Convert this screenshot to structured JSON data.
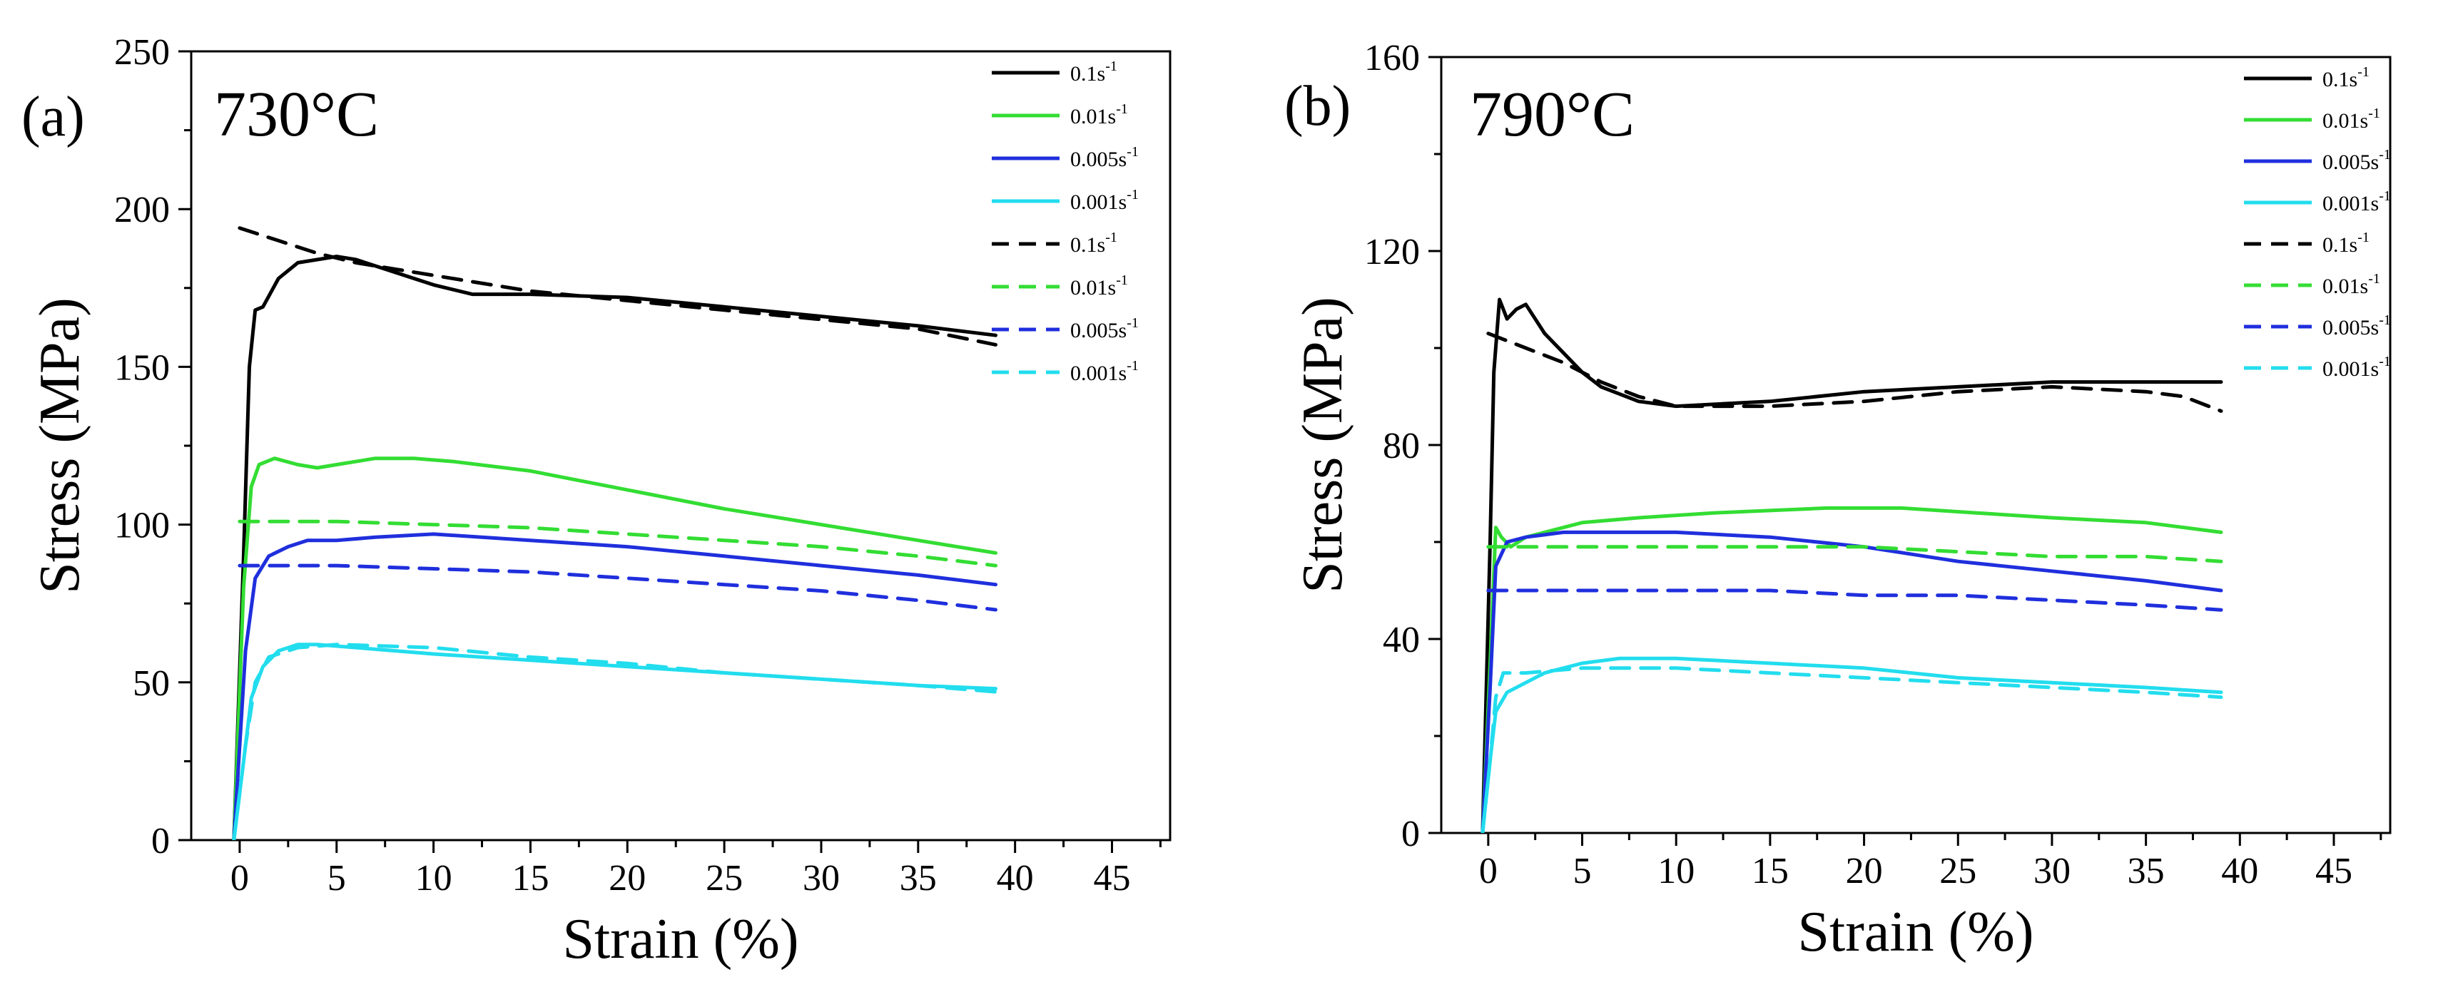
{
  "chart_data": [
    {
      "type": "line",
      "panel_label": "(a)",
      "title": "730°C",
      "xlabel": "Strain (%)",
      "ylabel": "Stress (MPa)",
      "xlim": [
        -2.5,
        48
      ],
      "ylim": [
        0,
        250
      ],
      "xticks": [
        "0",
        "5",
        "10",
        "15",
        "20",
        "25",
        "30",
        "35",
        "40",
        "45"
      ],
      "yticks": [
        "0",
        "50",
        "100",
        "150",
        "200",
        "250"
      ],
      "legend_position": "top-right",
      "series": [
        {
          "name": "0.1s",
          "unit_sup": "-1",
          "style": "solid",
          "color": "#000000",
          "points": [
            [
              -0.3,
              0
            ],
            [
              0.2,
              90
            ],
            [
              0.5,
              150
            ],
            [
              0.8,
              168
            ],
            [
              1.2,
              169
            ],
            [
              2,
              178
            ],
            [
              3,
              183
            ],
            [
              4,
              184
            ],
            [
              5,
              185
            ],
            [
              6,
              184
            ],
            [
              8,
              180
            ],
            [
              10,
              176
            ],
            [
              12,
              173
            ],
            [
              15,
              173
            ],
            [
              20,
              172
            ],
            [
              25,
              169
            ],
            [
              30,
              166
            ],
            [
              35,
              163
            ],
            [
              39,
              160
            ]
          ]
        },
        {
          "name": "0.01s",
          "unit_sup": "-1",
          "style": "solid",
          "color": "#33dd33",
          "points": [
            [
              -0.3,
              0
            ],
            [
              0.2,
              80
            ],
            [
              0.6,
              112
            ],
            [
              1,
              119
            ],
            [
              1.8,
              121
            ],
            [
              3,
              119
            ],
            [
              4,
              118
            ],
            [
              5,
              119
            ],
            [
              7,
              121
            ],
            [
              9,
              121
            ],
            [
              11,
              120
            ],
            [
              15,
              117
            ],
            [
              20,
              111
            ],
            [
              25,
              105
            ],
            [
              30,
              100
            ],
            [
              35,
              95
            ],
            [
              39,
              91
            ]
          ]
        },
        {
          "name": "0.005s",
          "unit_sup": "-1",
          "style": "solid",
          "color": "#1f2fdd",
          "points": [
            [
              -0.3,
              0
            ],
            [
              0.3,
              60
            ],
            [
              0.8,
              83
            ],
            [
              1.5,
              90
            ],
            [
              2.5,
              93
            ],
            [
              3.5,
              95
            ],
            [
              5,
              95
            ],
            [
              7,
              96
            ],
            [
              10,
              97
            ],
            [
              15,
              95
            ],
            [
              20,
              93
            ],
            [
              25,
              90
            ],
            [
              30,
              87
            ],
            [
              35,
              84
            ],
            [
              39,
              81
            ]
          ]
        },
        {
          "name": "0.001s",
          "unit_sup": "-1",
          "style": "solid",
          "color": "#22ddee",
          "points": [
            [
              -0.3,
              0
            ],
            [
              0.2,
              25
            ],
            [
              0.6,
              45
            ],
            [
              1.2,
              55
            ],
            [
              2,
              60
            ],
            [
              3,
              62
            ],
            [
              4,
              62
            ],
            [
              6,
              61
            ],
            [
              10,
              59
            ],
            [
              15,
              57
            ],
            [
              20,
              55
            ],
            [
              25,
              53
            ],
            [
              30,
              51
            ],
            [
              35,
              49
            ],
            [
              39,
              48
            ]
          ]
        },
        {
          "name": "0.1s",
          "unit_sup": "-1",
          "style": "dashed",
          "color": "#000000",
          "points": [
            [
              0,
              194
            ],
            [
              2,
              190
            ],
            [
              4,
              186
            ],
            [
              6,
              183
            ],
            [
              8,
              181
            ],
            [
              10,
              179
            ],
            [
              12,
              177
            ],
            [
              15,
              174
            ],
            [
              20,
              171
            ],
            [
              25,
              168
            ],
            [
              30,
              165
            ],
            [
              35,
              162
            ],
            [
              39,
              157
            ]
          ]
        },
        {
          "name": "0.01s",
          "unit_sup": "-1",
          "style": "dashed",
          "color": "#33dd33",
          "points": [
            [
              0,
              101
            ],
            [
              5,
              101
            ],
            [
              10,
              100
            ],
            [
              15,
              99
            ],
            [
              20,
              97
            ],
            [
              25,
              95
            ],
            [
              30,
              93
            ],
            [
              35,
              90
            ],
            [
              39,
              87
            ]
          ]
        },
        {
          "name": "0.005s",
          "unit_sup": "-1",
          "style": "dashed",
          "color": "#1f2fdd",
          "points": [
            [
              0,
              87
            ],
            [
              5,
              87
            ],
            [
              10,
              86
            ],
            [
              15,
              85
            ],
            [
              20,
              83
            ],
            [
              25,
              81
            ],
            [
              30,
              79
            ],
            [
              35,
              76
            ],
            [
              39,
              73
            ]
          ]
        },
        {
          "name": "0.001s",
          "unit_sup": "-1",
          "style": "dashed",
          "color": "#22ddee",
          "points": [
            [
              -0.3,
              0
            ],
            [
              0.3,
              30
            ],
            [
              0.8,
              50
            ],
            [
              1.5,
              58
            ],
            [
              3,
              61
            ],
            [
              5,
              62
            ],
            [
              10,
              61
            ],
            [
              15,
              58
            ],
            [
              20,
              56
            ],
            [
              25,
              53
            ],
            [
              30,
              51
            ],
            [
              35,
              49
            ],
            [
              39,
              47
            ]
          ]
        }
      ]
    },
    {
      "type": "line",
      "panel_label": "(b)",
      "title": "790°C",
      "xlabel": "Strain (%)",
      "ylabel": "Stress (MPa)",
      "xlim": [
        -2.5,
        48
      ],
      "ylim": [
        0,
        160
      ],
      "xticks": [
        "0",
        "5",
        "10",
        "15",
        "20",
        "25",
        "30",
        "35",
        "40",
        "45"
      ],
      "yticks": [
        "0",
        "40",
        "80",
        "120",
        "160"
      ],
      "legend_position": "top-right",
      "series": [
        {
          "name": "0.1s",
          "unit_sup": "-1",
          "style": "solid",
          "color": "#000000",
          "points": [
            [
              -0.3,
              0
            ],
            [
              0.1,
              60
            ],
            [
              0.3,
              95
            ],
            [
              0.6,
              110
            ],
            [
              1,
              106
            ],
            [
              1.5,
              108
            ],
            [
              2,
              109
            ],
            [
              2.5,
              106
            ],
            [
              3,
              103
            ],
            [
              4,
              99
            ],
            [
              5,
              95
            ],
            [
              6,
              92
            ],
            [
              8,
              89
            ],
            [
              10,
              88
            ],
            [
              15,
              89
            ],
            [
              20,
              91
            ],
            [
              25,
              92
            ],
            [
              30,
              93
            ],
            [
              35,
              93
            ],
            [
              39,
              93
            ]
          ]
        },
        {
          "name": "0.01s",
          "unit_sup": "-1",
          "style": "solid",
          "color": "#33dd33",
          "points": [
            [
              -0.3,
              0
            ],
            [
              0.1,
              35
            ],
            [
              0.4,
              63
            ],
            [
              0.7,
              61
            ],
            [
              1.2,
              59
            ],
            [
              2,
              61
            ],
            [
              3,
              62
            ],
            [
              5,
              64
            ],
            [
              8,
              65
            ],
            [
              12,
              66
            ],
            [
              18,
              67
            ],
            [
              22,
              67
            ],
            [
              26,
              66
            ],
            [
              30,
              65
            ],
            [
              35,
              64
            ],
            [
              39,
              62
            ]
          ]
        },
        {
          "name": "0.005s",
          "unit_sup": "-1",
          "style": "solid",
          "color": "#1f2fdd",
          "points": [
            [
              -0.3,
              0
            ],
            [
              0.1,
              30
            ],
            [
              0.4,
              55
            ],
            [
              1,
              60
            ],
            [
              2,
              61
            ],
            [
              4,
              62
            ],
            [
              6,
              62
            ],
            [
              8,
              62
            ],
            [
              10,
              62
            ],
            [
              15,
              61
            ],
            [
              20,
              59
            ],
            [
              25,
              56
            ],
            [
              30,
              54
            ],
            [
              35,
              52
            ],
            [
              39,
              50
            ]
          ]
        },
        {
          "name": "0.001s",
          "unit_sup": "-1",
          "style": "solid",
          "color": "#22ddee",
          "points": [
            [
              -0.3,
              0
            ],
            [
              0.1,
              15
            ],
            [
              0.4,
              25
            ],
            [
              1,
              29
            ],
            [
              2,
              31
            ],
            [
              3,
              33
            ],
            [
              5,
              35
            ],
            [
              7,
              36
            ],
            [
              10,
              36
            ],
            [
              15,
              35
            ],
            [
              20,
              34
            ],
            [
              25,
              32
            ],
            [
              30,
              31
            ],
            [
              35,
              30
            ],
            [
              39,
              29
            ]
          ]
        },
        {
          "name": "0.1s",
          "unit_sup": "-1",
          "style": "dashed",
          "color": "#000000",
          "points": [
            [
              0,
              103
            ],
            [
              2,
              100
            ],
            [
              4,
              97
            ],
            [
              6,
              93
            ],
            [
              8,
              90
            ],
            [
              10,
              88
            ],
            [
              12,
              88
            ],
            [
              15,
              88
            ],
            [
              20,
              89
            ],
            [
              25,
              91
            ],
            [
              30,
              92
            ],
            [
              35,
              91
            ],
            [
              37,
              90
            ],
            [
              39,
              87
            ]
          ]
        },
        {
          "name": "0.01s",
          "unit_sup": "-1",
          "style": "dashed",
          "color": "#33dd33",
          "points": [
            [
              0,
              59
            ],
            [
              5,
              59
            ],
            [
              10,
              59
            ],
            [
              15,
              59
            ],
            [
              20,
              59
            ],
            [
              25,
              58
            ],
            [
              30,
              57
            ],
            [
              35,
              57
            ],
            [
              39,
              56
            ]
          ]
        },
        {
          "name": "0.005s",
          "unit_sup": "-1",
          "style": "dashed",
          "color": "#1f2fdd",
          "points": [
            [
              0,
              50
            ],
            [
              5,
              50
            ],
            [
              10,
              50
            ],
            [
              15,
              50
            ],
            [
              20,
              49
            ],
            [
              25,
              49
            ],
            [
              30,
              48
            ],
            [
              35,
              47
            ],
            [
              39,
              46
            ]
          ]
        },
        {
          "name": "0.001s",
          "unit_sup": "-1",
          "style": "dashed",
          "color": "#22ddee",
          "points": [
            [
              -0.3,
              0
            ],
            [
              0.1,
              15
            ],
            [
              0.4,
              28
            ],
            [
              0.8,
              33
            ],
            [
              2,
              33
            ],
            [
              5,
              34
            ],
            [
              10,
              34
            ],
            [
              15,
              33
            ],
            [
              20,
              32
            ],
            [
              25,
              31
            ],
            [
              30,
              30
            ],
            [
              35,
              29
            ],
            [
              39,
              28
            ]
          ]
        }
      ]
    }
  ]
}
